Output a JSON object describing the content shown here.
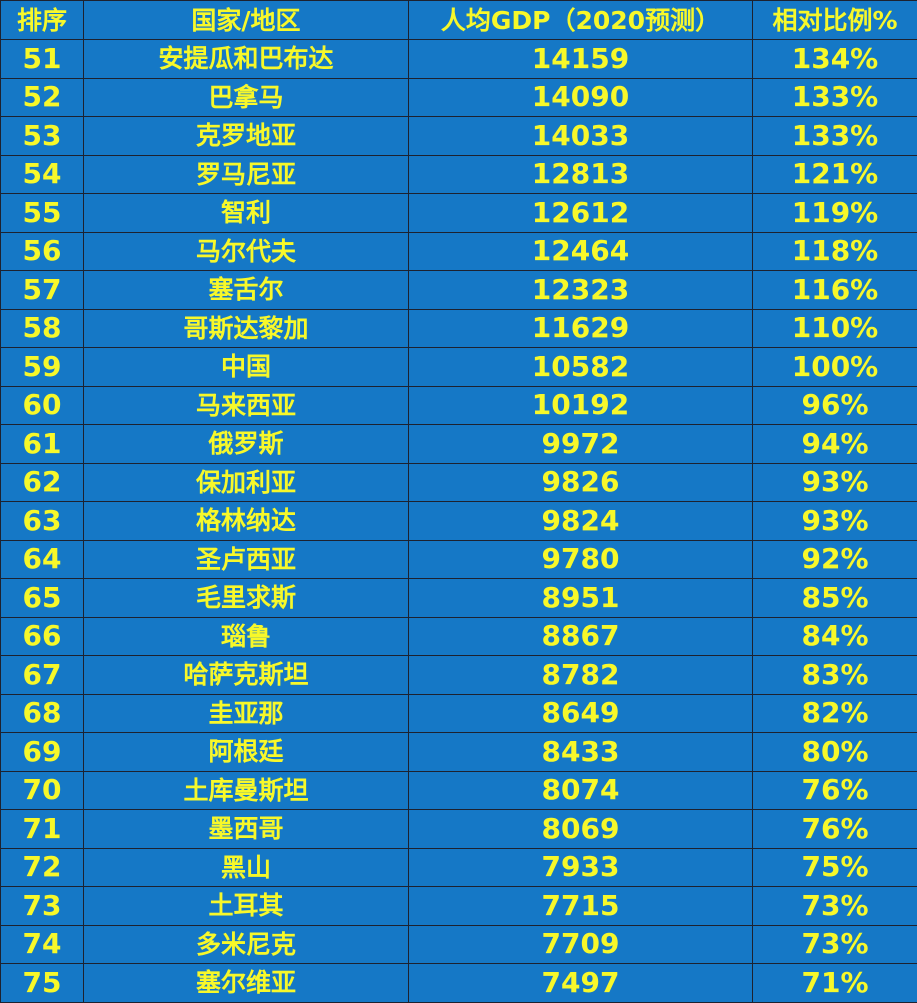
{
  "table": {
    "headers": {
      "rank": "排序",
      "country": "国家/地区",
      "gdp": "人均GDP（2020预测）",
      "ratio": "相对比例%"
    },
    "rows": [
      {
        "rank": "51",
        "country": "安提瓜和巴布达",
        "gdp": "14159",
        "ratio": "134%"
      },
      {
        "rank": "52",
        "country": "巴拿马",
        "gdp": "14090",
        "ratio": "133%"
      },
      {
        "rank": "53",
        "country": "克罗地亚",
        "gdp": "14033",
        "ratio": "133%"
      },
      {
        "rank": "54",
        "country": "罗马尼亚",
        "gdp": "12813",
        "ratio": "121%"
      },
      {
        "rank": "55",
        "country": "智利",
        "gdp": "12612",
        "ratio": "119%"
      },
      {
        "rank": "56",
        "country": "马尔代夫",
        "gdp": "12464",
        "ratio": "118%"
      },
      {
        "rank": "57",
        "country": "塞舌尔",
        "gdp": "12323",
        "ratio": "116%"
      },
      {
        "rank": "58",
        "country": "哥斯达黎加",
        "gdp": "11629",
        "ratio": "110%"
      },
      {
        "rank": "59",
        "country": "中国",
        "gdp": "10582",
        "ratio": "100%"
      },
      {
        "rank": "60",
        "country": "马来西亚",
        "gdp": "10192",
        "ratio": "96%"
      },
      {
        "rank": "61",
        "country": "俄罗斯",
        "gdp": "9972",
        "ratio": "94%"
      },
      {
        "rank": "62",
        "country": "保加利亚",
        "gdp": "9826",
        "ratio": "93%"
      },
      {
        "rank": "63",
        "country": "格林纳达",
        "gdp": "9824",
        "ratio": "93%"
      },
      {
        "rank": "64",
        "country": "圣卢西亚",
        "gdp": "9780",
        "ratio": "92%"
      },
      {
        "rank": "65",
        "country": "毛里求斯",
        "gdp": "8951",
        "ratio": "85%"
      },
      {
        "rank": "66",
        "country": "瑙鲁",
        "gdp": "8867",
        "ratio": "84%"
      },
      {
        "rank": "67",
        "country": "哈萨克斯坦",
        "gdp": "8782",
        "ratio": "83%"
      },
      {
        "rank": "68",
        "country": "圭亚那",
        "gdp": "8649",
        "ratio": "82%"
      },
      {
        "rank": "69",
        "country": "阿根廷",
        "gdp": "8433",
        "ratio": "80%"
      },
      {
        "rank": "70",
        "country": "土库曼斯坦",
        "gdp": "8074",
        "ratio": "76%"
      },
      {
        "rank": "71",
        "country": "墨西哥",
        "gdp": "8069",
        "ratio": "76%"
      },
      {
        "rank": "72",
        "country": "黑山",
        "gdp": "7933",
        "ratio": "75%"
      },
      {
        "rank": "73",
        "country": "土耳其",
        "gdp": "7715",
        "ratio": "73%"
      },
      {
        "rank": "74",
        "country": "多米尼克",
        "gdp": "7709",
        "ratio": "73%"
      },
      {
        "rank": "75",
        "country": "塞尔维亚",
        "gdp": "7497",
        "ratio": "71%"
      }
    ]
  },
  "colors": {
    "cell_background": "#1578c6",
    "text": "#f7f82a",
    "grid_lines": "#1d2230"
  }
}
